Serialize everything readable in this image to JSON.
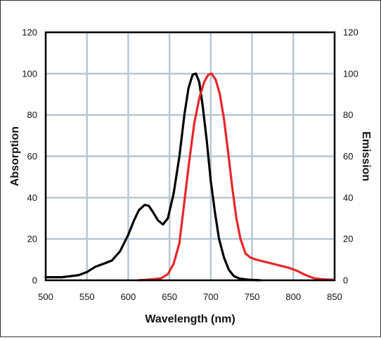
{
  "chart_data": {
    "type": "line",
    "title": "",
    "xlabel": "Wavelength (nm)",
    "ylabel_left": "Absorption",
    "ylabel_right": "Emission",
    "xlim": [
      500,
      850
    ],
    "ylim": [
      0,
      120
    ],
    "xticks": [
      500,
      550,
      600,
      650,
      700,
      750,
      800,
      850
    ],
    "yticks": [
      0,
      20,
      40,
      60,
      80,
      100,
      120
    ],
    "grid": true,
    "series": [
      {
        "color": "#000000",
        "axis": "left",
        "points": [
          [
            500,
            1.5
          ],
          [
            520,
            1.5
          ],
          [
            530,
            2
          ],
          [
            540,
            2.5
          ],
          [
            550,
            4
          ],
          [
            560,
            6.5
          ],
          [
            570,
            8
          ],
          [
            580,
            9.5
          ],
          [
            590,
            14
          ],
          [
            600,
            22
          ],
          [
            607,
            29
          ],
          [
            613,
            34
          ],
          [
            620,
            36.5
          ],
          [
            625,
            36
          ],
          [
            630,
            33
          ],
          [
            636,
            29
          ],
          [
            642,
            27
          ],
          [
            648,
            30
          ],
          [
            655,
            42
          ],
          [
            662,
            60
          ],
          [
            668,
            80
          ],
          [
            673,
            93
          ],
          [
            678,
            99.5
          ],
          [
            682,
            100
          ],
          [
            686,
            96
          ],
          [
            690,
            85
          ],
          [
            695,
            68
          ],
          [
            700,
            48
          ],
          [
            705,
            33
          ],
          [
            710,
            20
          ],
          [
            716,
            11
          ],
          [
            722,
            5
          ],
          [
            728,
            2
          ],
          [
            735,
            0.8
          ],
          [
            745,
            0.3
          ],
          [
            760,
            0
          ]
        ]
      },
      {
        "color": "#e8262a",
        "axis": "right",
        "points": [
          [
            612,
            0
          ],
          [
            620,
            0.2
          ],
          [
            630,
            0.5
          ],
          [
            640,
            1
          ],
          [
            648,
            3
          ],
          [
            655,
            8
          ],
          [
            662,
            18
          ],
          [
            668,
            38
          ],
          [
            674,
            58
          ],
          [
            680,
            76
          ],
          [
            686,
            88
          ],
          [
            692,
            96
          ],
          [
            697,
            99.5
          ],
          [
            701,
            100
          ],
          [
            706,
            97
          ],
          [
            711,
            90
          ],
          [
            716,
            78
          ],
          [
            721,
            62
          ],
          [
            726,
            45
          ],
          [
            731,
            30
          ],
          [
            736,
            20
          ],
          [
            742,
            13
          ],
          [
            748,
            11
          ],
          [
            755,
            10
          ],
          [
            765,
            9
          ],
          [
            775,
            8
          ],
          [
            785,
            7
          ],
          [
            795,
            6
          ],
          [
            805,
            4.5
          ],
          [
            815,
            2.5
          ],
          [
            825,
            1
          ],
          [
            835,
            0.5
          ],
          [
            845,
            0.3
          ],
          [
            850,
            0.2
          ]
        ]
      }
    ]
  }
}
